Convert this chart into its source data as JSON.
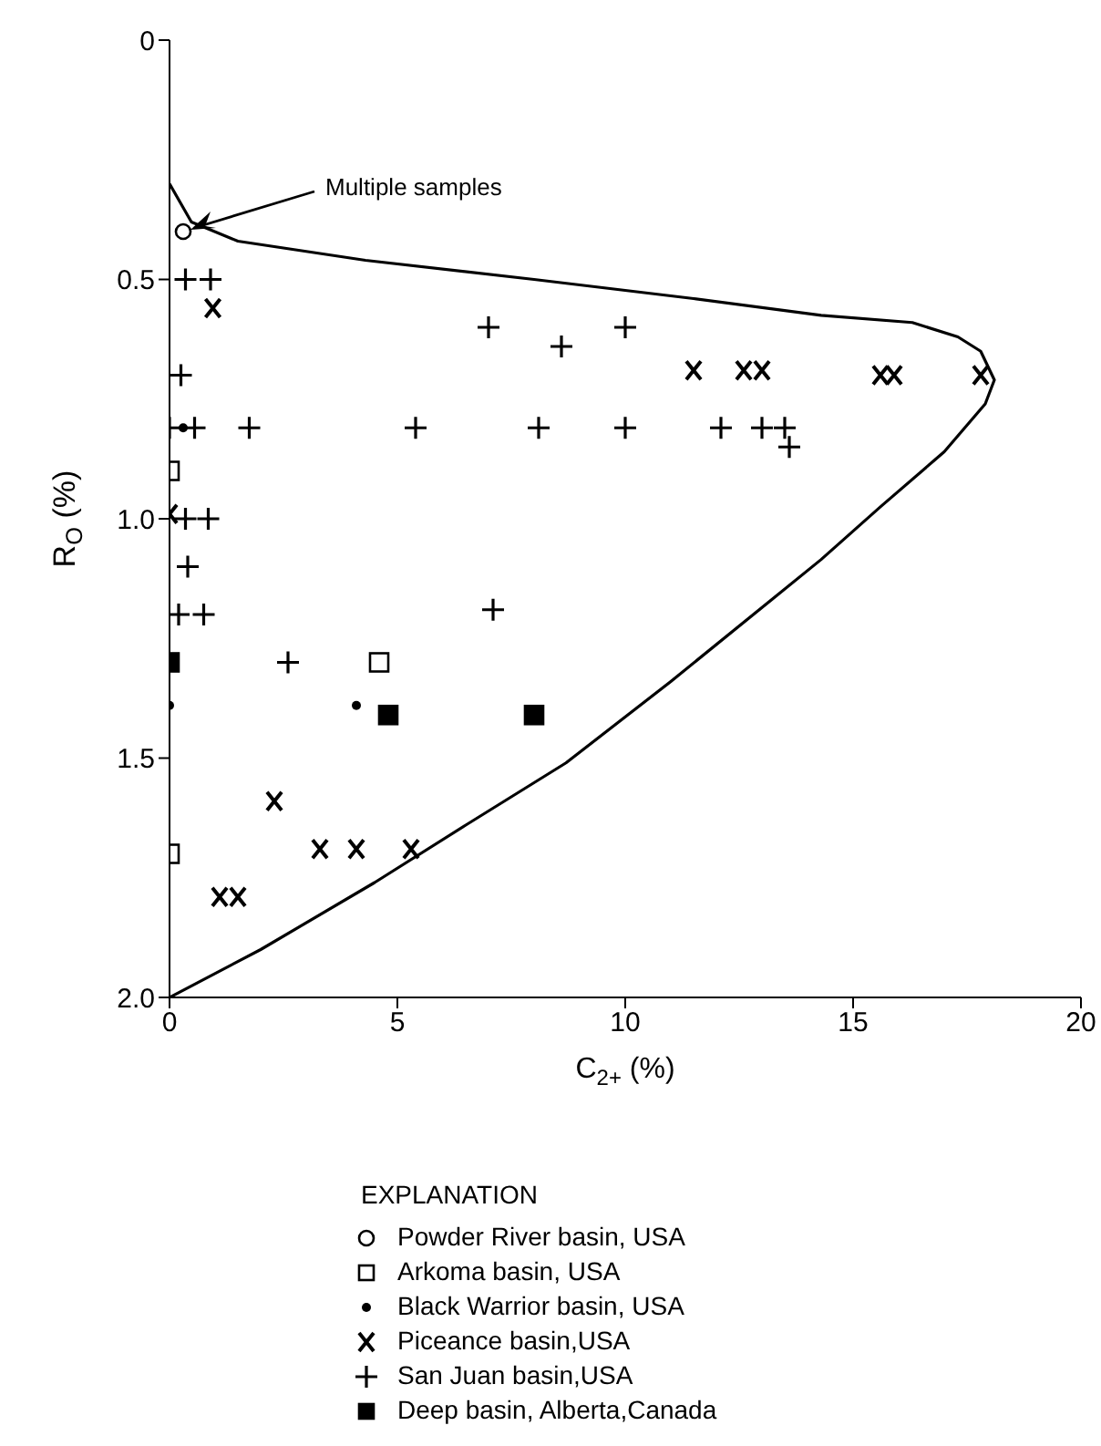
{
  "chart_data": {
    "type": "scatter",
    "xlabel": "C$_{2+}$ (%)",
    "ylabel": "R$_{O}$ (%)",
    "xlim": [
      0,
      20
    ],
    "xticks": [
      0,
      5,
      10,
      15,
      20
    ],
    "ylim": [
      2.0,
      0
    ],
    "yticks": [
      0,
      0.5,
      {
        "value": 1.0,
        "label": "1.0"
      },
      1.5,
      {
        "value": 2.0,
        "label": "2.0"
      }
    ],
    "grid": false,
    "legend": "bottom",
    "legend_title": "EXPLANATION",
    "annotations": [
      {
        "text": "Multiple samples",
        "x": 0.3,
        "y": 0.4
      }
    ],
    "series": [
      {
        "name": "Powder River basin, USA",
        "color": "#000000",
        "marker": "circle",
        "x": [
          0.3
        ],
        "values": [
          0.4
        ]
      },
      {
        "name": "Arkoma basin, USA",
        "color": "#000000",
        "marker": "square",
        "x": [
          0,
          4.6,
          0
        ],
        "values": [
          0.9,
          1.3,
          1.7
        ]
      },
      {
        "name": "Black Warrior basin, USA",
        "color": "#000000",
        "marker": "circle",
        "x": [
          0.3,
          0,
          4.1
        ],
        "values": [
          0.81,
          1.39,
          1.39
        ]
      },
      {
        "name": "Piceance basin,USA",
        "color": "#000000",
        "marker": "cross",
        "x": [
          0.95,
          0,
          2.3,
          3.3,
          4.1,
          1.1,
          1.5,
          5.3,
          11.5,
          12.6,
          13.0,
          15.6,
          15.9,
          17.8
        ],
        "values": [
          0.56,
          0.99,
          1.59,
          1.69,
          1.69,
          1.79,
          1.79,
          1.69,
          0.69,
          0.69,
          0.69,
          0.7,
          0.7,
          0.7
        ]
      },
      {
        "name": "San Juan basin,USA",
        "color": "#000000",
        "marker": "plus",
        "x": [
          0.35,
          0.9,
          0.25,
          0,
          0.55,
          1.75,
          0.35,
          0.85,
          0.4,
          0.2,
          0.75,
          2.6,
          7.0,
          8.6,
          10.0,
          5.4,
          8.1,
          10.0,
          12.1,
          13.0,
          13.5,
          13.6,
          7.1
        ],
        "values": [
          0.5,
          0.5,
          0.7,
          0.81,
          0.81,
          0.81,
          1.0,
          1.0,
          1.1,
          1.2,
          1.2,
          1.3,
          0.6,
          0.64,
          0.6,
          0.81,
          0.81,
          0.81,
          0.81,
          0.81,
          0.81,
          0.85,
          1.19
        ]
      },
      {
        "name": "Deep basin, Alberta,Canada",
        "color": "#000000",
        "marker": "square",
        "x": [
          0,
          4.8,
          8.0
        ],
        "values": [
          1.3,
          1.41,
          1.41
        ]
      },
      {
        "type": "line",
        "color": "#000000",
        "marker": "none",
        "x": [
          0,
          0.48,
          1.5,
          4.3,
          8,
          11.5,
          14.3,
          16.3,
          17.3,
          17.8,
          18.1,
          17.9,
          17,
          15.6,
          14.3,
          13.2,
          11,
          8.7,
          6.5,
          4.5,
          2,
          0
        ],
        "values": [
          0.3,
          0.38,
          0.42,
          0.46,
          0.5,
          0.54,
          0.575,
          0.59,
          0.62,
          0.65,
          0.71,
          0.76,
          0.86,
          0.975,
          1.085,
          1.17,
          1.34,
          1.51,
          1.64,
          1.76,
          1.9,
          2.0
        ]
      }
    ]
  }
}
